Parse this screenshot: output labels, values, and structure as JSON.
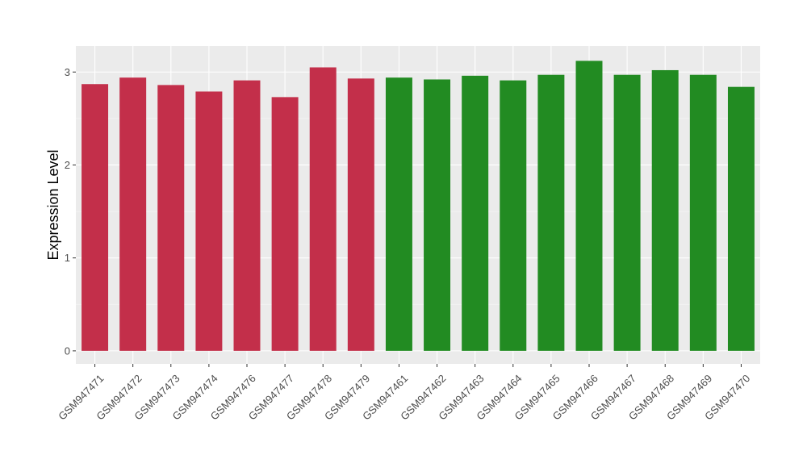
{
  "chart_data": {
    "type": "bar",
    "title": "",
    "xlabel": "",
    "ylabel": "Expression Level",
    "ylim": [
      -0.14,
      3.28
    ],
    "yticks": [
      0,
      1,
      2,
      3
    ],
    "grid": true,
    "legend": "none",
    "categories": [
      "GSM947471",
      "GSM947472",
      "GSM947473",
      "GSM947474",
      "GSM947476",
      "GSM947477",
      "GSM947478",
      "GSM947479",
      "GSM947461",
      "GSM947462",
      "GSM947463",
      "GSM947464",
      "GSM947465",
      "GSM947466",
      "GSM947467",
      "GSM947468",
      "GSM947469",
      "GSM947470"
    ],
    "values": [
      2.87,
      2.94,
      2.86,
      2.79,
      2.91,
      2.73,
      3.05,
      2.93,
      2.94,
      2.92,
      2.96,
      2.91,
      2.97,
      3.12,
      2.97,
      3.02,
      2.97,
      2.84
    ],
    "group": [
      "a",
      "a",
      "a",
      "a",
      "a",
      "a",
      "a",
      "a",
      "b",
      "b",
      "b",
      "b",
      "b",
      "b",
      "b",
      "b",
      "b",
      "b"
    ],
    "colors": {
      "a": "#c32f4a",
      "b": "#228b22",
      "panel": "#ebebeb",
      "grid_major": "#ffffff",
      "grid_minor": "#f5f5f5",
      "axis_text": "#4d4d4d",
      "title_text": "#000000"
    }
  }
}
